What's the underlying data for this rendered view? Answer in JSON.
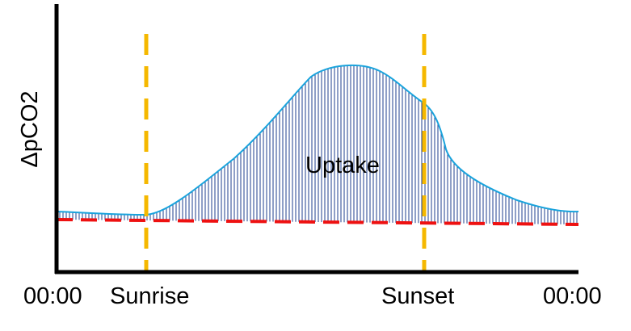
{
  "y_axis": {
    "label": "ΔpCO2"
  },
  "x_axis": {
    "ticks": [
      {
        "id": "start",
        "label": "00:00"
      },
      {
        "id": "sunrise",
        "label": "Sunrise"
      },
      {
        "id": "sunset",
        "label": "Sunset"
      },
      {
        "id": "end",
        "label": "00:00"
      }
    ]
  },
  "region_label": "Uptake",
  "colors": {
    "curve": "#1aa3dc",
    "hatch": "#1f3f8f",
    "baseline": "#ee1111",
    "markers": "#f5b800",
    "axes": "#000000"
  }
}
